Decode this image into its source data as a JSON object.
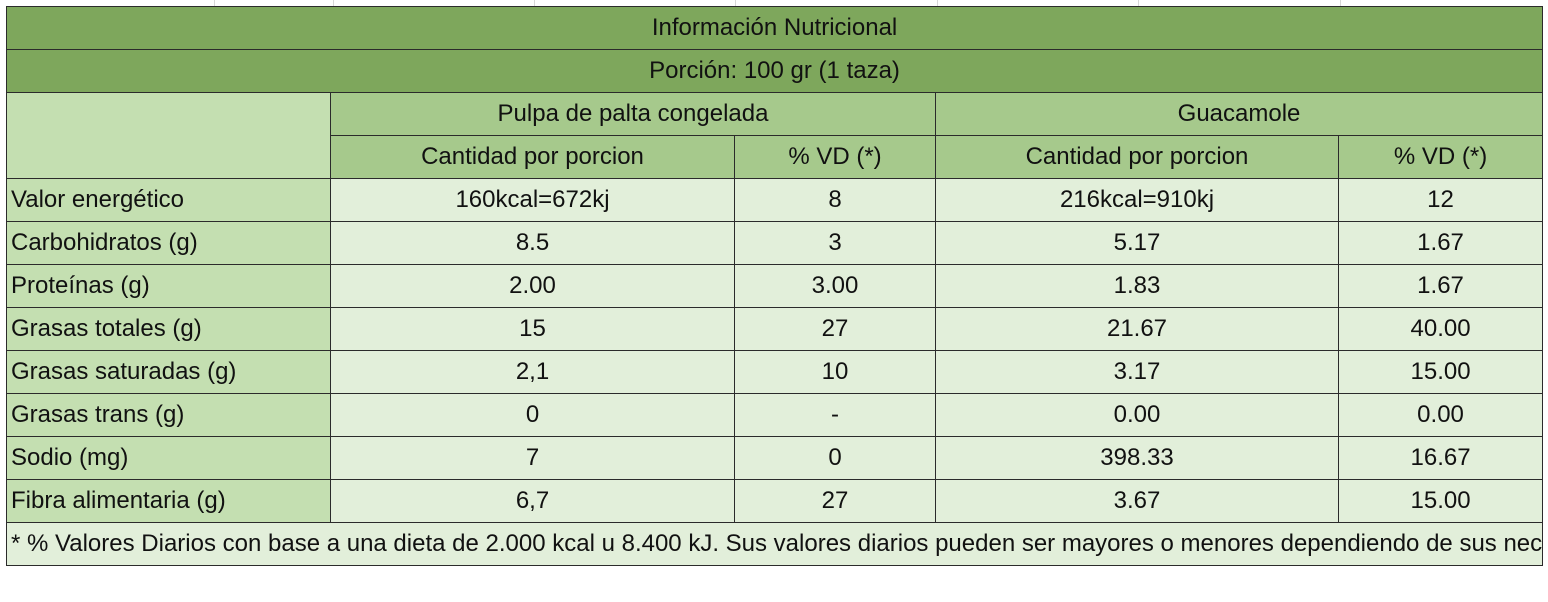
{
  "title": "Información Nutricional",
  "portion": "Porción: 100 gr (1 taza)",
  "products": [
    "Pulpa de palta congelada",
    "Guacamole"
  ],
  "subheaders": [
    "Cantidad por porcion",
    "% VD (*)",
    "Cantidad por porcion",
    "% VD (*)"
  ],
  "rows": [
    {
      "label": "Valor energético",
      "values": [
        "160kcal=672kj",
        "8",
        "216kcal=910kj",
        "12"
      ]
    },
    {
      "label": "Carbohidratos (g)",
      "values": [
        "8.5",
        "3",
        "5.17",
        "1.67"
      ]
    },
    {
      "label": "Proteínas (g)",
      "values": [
        "2.00",
        "3.00",
        "1.83",
        "1.67"
      ]
    },
    {
      "label": "Grasas totales (g)",
      "values": [
        "15",
        "27",
        "21.67",
        "40.00"
      ]
    },
    {
      "label": "Grasas saturadas (g)",
      "values": [
        "2,1",
        "10",
        "3.17",
        "15.00"
      ]
    },
    {
      "label": "Grasas trans (g)",
      "values": [
        "0",
        "-",
        "0.00",
        "0.00"
      ]
    },
    {
      "label": "Sodio (mg)",
      "values": [
        "7",
        "0",
        "398.33",
        "16.67"
      ]
    },
    {
      "label": "Fibra alimentaria (g)",
      "values": [
        "6,7",
        "27",
        "3.67",
        "15.00"
      ]
    }
  ],
  "footnote": "* % Valores Diarios con base a una dieta de 2.000 kcal u 8.400 kJ. Sus valores diarios pueden ser mayores o menores dependiendo de sus necesidades energéticas.",
  "colors": {
    "header_dark": "#7ea75c",
    "header_mid": "#a6c98c",
    "label_bg": "#c4dfb1",
    "cell_bg": "#e2efda"
  }
}
